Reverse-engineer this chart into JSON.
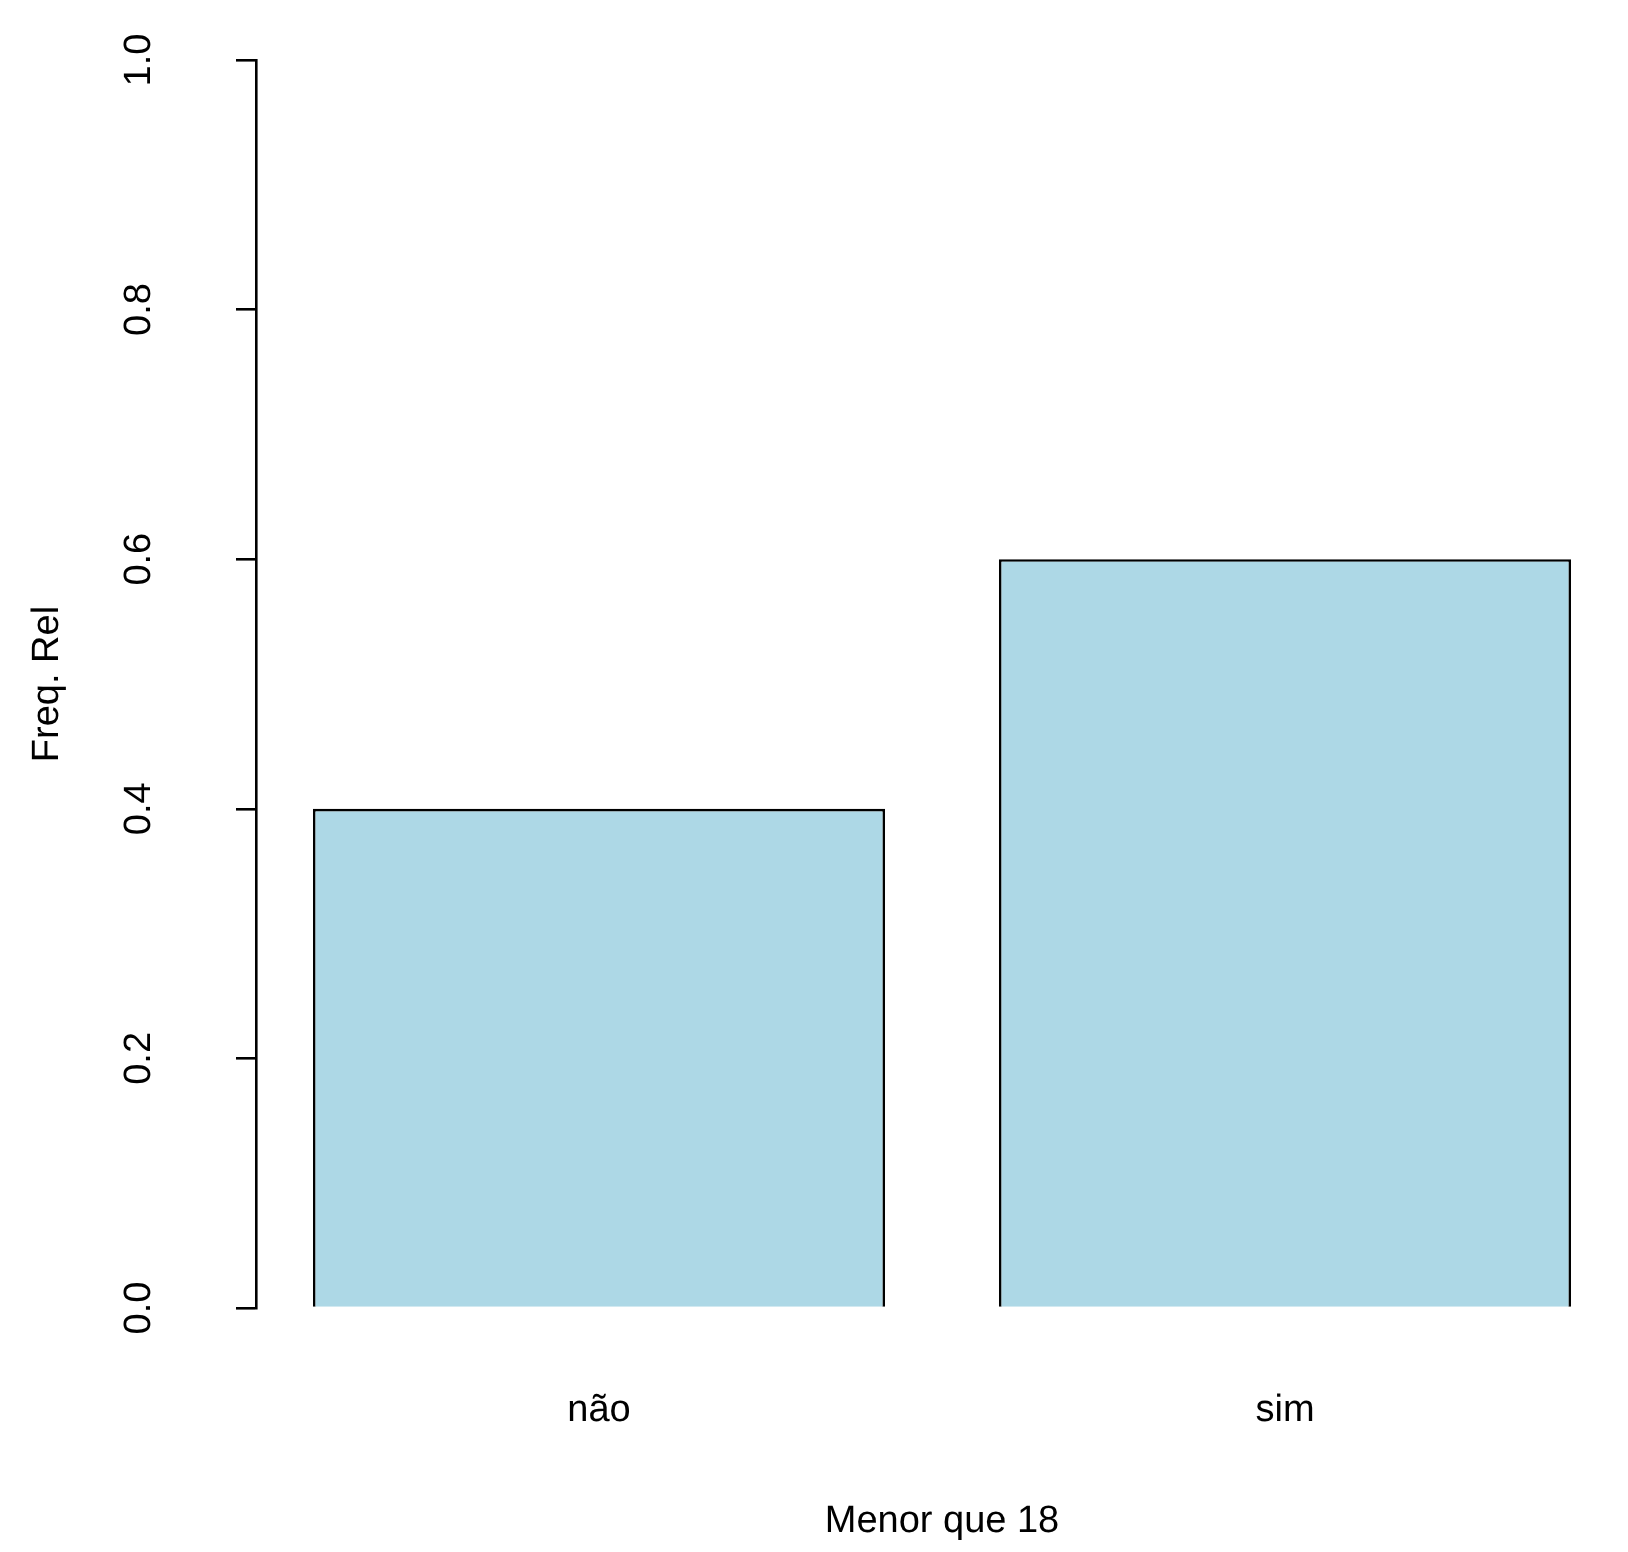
{
  "chart_data": {
    "type": "bar",
    "xlabel": "Menor que 18",
    "ylabel": "Freq. Rel",
    "categories": [
      "não",
      "sim"
    ],
    "values": [
      0.4,
      0.6
    ],
    "color": "#add8e6",
    "ylim": [
      0,
      1
    ],
    "yticks": [
      {
        "value": 0,
        "label": "0.0"
      },
      0.2,
      0.4,
      0.6,
      0.8,
      {
        "value": 1,
        "label": "1.0"
      }
    ],
    "grid": false,
    "legend": false
  }
}
